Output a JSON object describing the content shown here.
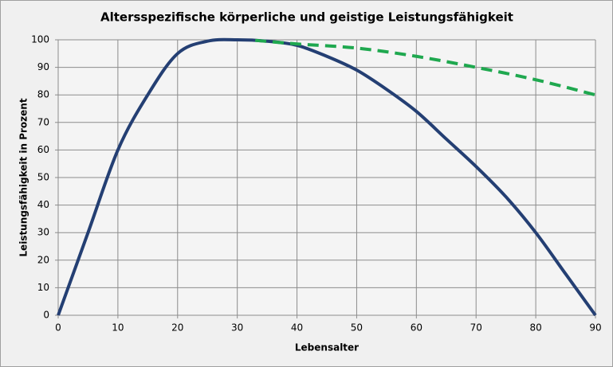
{
  "chart_data": {
    "type": "line",
    "title": "Altersspezifische körperliche und geistige Leistungsfähigkeit",
    "x_label": "Lebensalter",
    "y_label": "Leistungsfähigkeit in Prozent",
    "xlim": [
      0,
      90
    ],
    "xticks": [
      0,
      10,
      20,
      30,
      40,
      50,
      60,
      70,
      80,
      90
    ],
    "ylim": [
      0,
      100
    ],
    "yticks": [
      0,
      10,
      20,
      30,
      40,
      50,
      60,
      70,
      80,
      90,
      100
    ],
    "grid": true,
    "series": [
      {
        "color": "#243f73",
        "dashed": false,
        "x": [
          0,
          5,
          10,
          15,
          20,
          25,
          30,
          35,
          40,
          45,
          50,
          55,
          60,
          65,
          70,
          75,
          80,
          85,
          90
        ],
        "values": [
          0,
          30,
          60,
          80,
          95,
          99.5,
          100,
          99.5,
          98,
          94,
          89,
          82,
          74,
          64,
          54,
          43,
          30,
          15,
          0
        ]
      },
      {
        "color": "#1fa84f",
        "dashed": true,
        "x": [
          33,
          40,
          50,
          60,
          70,
          80,
          90
        ],
        "values": [
          99.8,
          98.5,
          97,
          94,
          90,
          85.5,
          80
        ]
      }
    ]
  }
}
